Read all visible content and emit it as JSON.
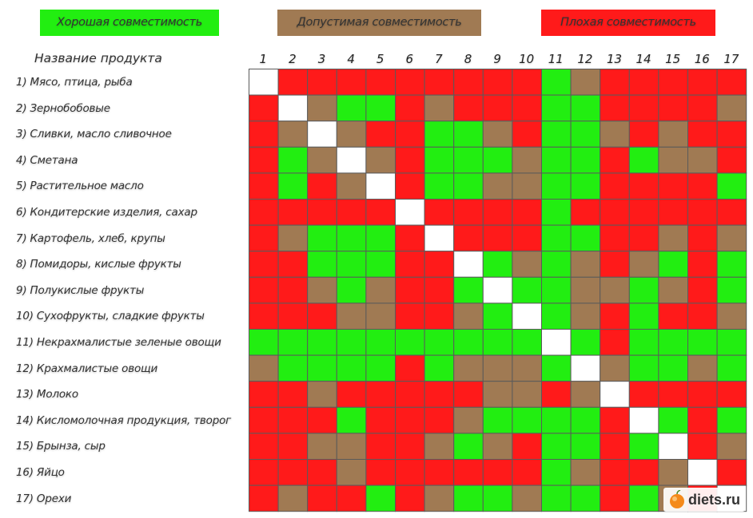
{
  "legend": {
    "good": {
      "label": "Хорошая совместимость",
      "color": "#22ee11"
    },
    "ok": {
      "label": "Допустимая совместимость",
      "color": "#a07a53"
    },
    "bad": {
      "label": "Плохая совместимость",
      "color": "#ff1a1a"
    }
  },
  "header_product": "Название продукта",
  "watermark": "diets.ru",
  "chart_data": {
    "type": "heatmap",
    "columns": [
      "1",
      "2",
      "3",
      "4",
      "5",
      "6",
      "7",
      "8",
      "9",
      "10",
      "11",
      "12",
      "13",
      "14",
      "15",
      "16",
      "17"
    ],
    "rows": [
      "1) Мясо, птица, рыба",
      "2) Зернобобовые",
      "3) Сливки, масло сливочное",
      "4) Сметана",
      "5) Растительное масло",
      "6) Кондитерские изделия, сахар",
      "7) Картофель, хлеб, крупы",
      "8) Помидоры, кислые фрукты",
      "9) Полукислые фрукты",
      "10) Сухофрукты, сладкие фрукты",
      "11) Некрахмалистые зеленые овощи",
      "12) Крахмалистые овощи",
      "13) Молоко",
      "14) Кисломолочная продукция, творог",
      "15) Брынза, сыр",
      "16) Яйцо",
      "17) Орехи"
    ],
    "value_legend": {
      "G": "Хорошая совместимость",
      "Y": "Допустимая совместимость",
      "R": "Плохая совместимость",
      "W": ""
    },
    "values": [
      [
        "W",
        "R",
        "R",
        "R",
        "R",
        "R",
        "R",
        "R",
        "R",
        "R",
        "G",
        "Y",
        "R",
        "R",
        "R",
        "R",
        "R"
      ],
      [
        "R",
        "W",
        "Y",
        "G",
        "G",
        "R",
        "Y",
        "R",
        "R",
        "R",
        "G",
        "G",
        "R",
        "R",
        "R",
        "R",
        "Y"
      ],
      [
        "R",
        "Y",
        "W",
        "Y",
        "R",
        "R",
        "G",
        "G",
        "Y",
        "R",
        "G",
        "G",
        "Y",
        "R",
        "Y",
        "R",
        "R"
      ],
      [
        "R",
        "G",
        "Y",
        "W",
        "Y",
        "R",
        "G",
        "G",
        "G",
        "Y",
        "G",
        "G",
        "R",
        "G",
        "Y",
        "Y",
        "R"
      ],
      [
        "R",
        "G",
        "R",
        "Y",
        "W",
        "R",
        "G",
        "G",
        "Y",
        "Y",
        "G",
        "G",
        "R",
        "R",
        "R",
        "R",
        "G"
      ],
      [
        "R",
        "R",
        "R",
        "R",
        "R",
        "W",
        "R",
        "R",
        "R",
        "R",
        "G",
        "R",
        "R",
        "R",
        "R",
        "R",
        "R"
      ],
      [
        "R",
        "Y",
        "G",
        "G",
        "G",
        "R",
        "W",
        "R",
        "R",
        "R",
        "G",
        "G",
        "R",
        "R",
        "Y",
        "R",
        "Y"
      ],
      [
        "R",
        "R",
        "G",
        "G",
        "G",
        "R",
        "R",
        "W",
        "G",
        "Y",
        "G",
        "Y",
        "R",
        "Y",
        "G",
        "R",
        "G"
      ],
      [
        "R",
        "R",
        "Y",
        "G",
        "Y",
        "R",
        "R",
        "G",
        "W",
        "G",
        "G",
        "Y",
        "Y",
        "G",
        "Y",
        "R",
        "G"
      ],
      [
        "R",
        "R",
        "R",
        "Y",
        "Y",
        "R",
        "R",
        "Y",
        "G",
        "W",
        "G",
        "Y",
        "R",
        "G",
        "R",
        "R",
        "Y"
      ],
      [
        "G",
        "G",
        "G",
        "G",
        "G",
        "G",
        "G",
        "G",
        "G",
        "G",
        "W",
        "G",
        "R",
        "G",
        "G",
        "G",
        "G"
      ],
      [
        "Y",
        "G",
        "G",
        "G",
        "G",
        "R",
        "G",
        "Y",
        "Y",
        "Y",
        "G",
        "W",
        "Y",
        "G",
        "G",
        "Y",
        "G"
      ],
      [
        "R",
        "R",
        "Y",
        "R",
        "R",
        "R",
        "R",
        "R",
        "Y",
        "Y",
        "R",
        "Y",
        "W",
        "R",
        "R",
        "R",
        "R"
      ],
      [
        "R",
        "R",
        "R",
        "G",
        "R",
        "R",
        "R",
        "Y",
        "G",
        "G",
        "G",
        "G",
        "R",
        "W",
        "G",
        "R",
        "G"
      ],
      [
        "R",
        "R",
        "Y",
        "Y",
        "R",
        "R",
        "Y",
        "G",
        "Y",
        "R",
        "G",
        "G",
        "R",
        "G",
        "W",
        "R",
        "Y"
      ],
      [
        "R",
        "R",
        "R",
        "Y",
        "R",
        "R",
        "R",
        "R",
        "R",
        "R",
        "G",
        "Y",
        "R",
        "R",
        "Y",
        "W",
        "R"
      ],
      [
        "R",
        "Y",
        "R",
        "R",
        "G",
        "R",
        "Y",
        "G",
        "G",
        "Y",
        "G",
        "G",
        "R",
        "G",
        "Y",
        "R",
        "W"
      ]
    ]
  }
}
